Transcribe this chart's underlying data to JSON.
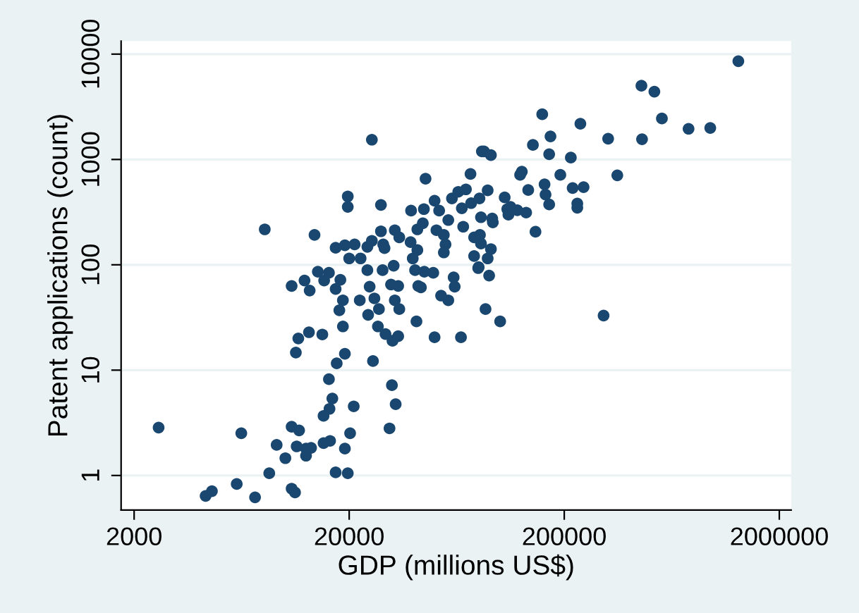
{
  "chart_data": {
    "type": "scatter",
    "xlabel": "GDP (millions US$)",
    "ylabel": "Patent applications (count)",
    "log": "xy",
    "grid": "y",
    "marker": "circle",
    "xlim": [
      1740,
      2270000
    ],
    "ylim": [
      0.47,
      13300
    ],
    "xticks": [
      2000,
      20000,
      200000,
      2000000
    ],
    "yticks": [
      1,
      10,
      100,
      1000,
      10000
    ],
    "series": [
      {
        "color": "#1a476f",
        "x": [
          2600,
          4300,
          4600,
          6000,
          7300,
          6300,
          8500,
          9200,
          10100,
          10800,
          11200,
          10800,
          11700,
          11400,
          12600,
          13300,
          12600,
          15200,
          16200,
          16700,
          15200,
          16300,
          16100,
          17500,
          19100,
          17300,
          19700,
          19100,
          20200,
          21000,
          11300,
          11600,
          13000,
          15000,
          10800,
          12400,
          13100,
          8100,
          13800,
          14300,
          15300,
          17300,
          18000,
          18700,
          18700,
          25500,
          19700,
          19700,
          28100,
          17300,
          19100,
          21200,
          22600,
          24300,
          25500,
          28800,
          24300,
          28600,
          20000,
          16100,
          18200,
          22400,
          24900,
          26200,
          24500,
          27500,
          27200,
          25800,
          29500,
          31600,
          32900,
          30800,
          31800,
          33800,
          32600,
          34200,
          31300,
          33800,
          28100,
          32600,
          34200,
          29200,
          32200,
          45300,
          38800,
          44500,
          41500,
          44000,
          38600,
          41500,
          39500,
          40500,
          44700,
          41900,
          43100,
          41100,
          49200,
          49900,
          52400,
          50900,
          55100,
          56100,
          55100,
          57800,
          60100,
          64300,
          69800,
          73300,
          66800,
          73800,
          67800,
          61200,
          61900,
          57800,
          53500,
          49900,
          66200,
          79600,
          76200,
          76200,
          81100,
          82800,
          84700,
          91200,
          88100,
          80700,
          82000,
          92500,
          93100,
          82000,
          91200,
          88100,
          80000,
          89500,
          86100,
          100700,
          105700,
          108700,
          112500,
          121000,
          110000,
          133000,
          124700,
          127000,
          136000,
          147000,
          143000,
          158000,
          172600,
          170200,
          162000,
          163700,
          170200,
          191800,
          214600,
          218800,
          246000,
          230000,
          230000,
          237700,
          320000,
          353000,
          304800,
          457000,
          525000,
          569000,
          460000,
          757000,
          955000,
          1290000
        ],
        "values": [
          2.85,
          0.64,
          0.71,
          0.83,
          0.62,
          2.52,
          1.05,
          1.95,
          1.46,
          0.75,
          0.69,
          2.9,
          2.68,
          1.89,
          1.8,
          1.83,
          1.54,
          3.68,
          4.29,
          5.38,
          2.03,
          2.13,
          8.2,
          11.6,
          14.3,
          1.07,
          1.05,
          1.8,
          2.52,
          4.53,
          14.7,
          20,
          22.9,
          21.8,
          63,
          71,
          57,
          217,
          192,
          86,
          71,
          59,
          37,
          46,
          26,
          1540,
          446,
          355,
          370,
          145,
          153,
          156,
          115,
          148,
          169,
          156,
          89,
          89,
          115,
          84,
          72,
          46,
          62,
          48,
          33.5,
          38,
          26,
          12.2,
          22,
          7.2,
          4.75,
          2.8,
          19,
          21,
          46,
          38,
          65,
          63,
          208,
          213,
          182,
          144,
          98,
          656,
          327,
          338,
          217,
          248,
          164,
          138,
          115,
          89,
          86,
          63,
          61,
          29,
          84,
          406,
          327,
          213,
          192,
          156,
          131,
          266,
          427,
          493,
          520,
          729,
          344,
          385,
          230,
          76,
          62,
          46,
          51,
          20.5,
          20.5,
          93,
          121,
          182,
          192,
          1194,
          1194,
          1099,
          509,
          427,
          283,
          275,
          253,
          159,
          141,
          115,
          95,
          79,
          38,
          29,
          436,
          338,
          355,
          330,
          299,
          313,
          714,
          766,
          513,
          206,
          1375,
          2685,
          1655,
          1122,
          581,
          464,
          374,
          714,
          1042,
          536,
          546,
          382,
          348,
          2183,
          1575,
          707,
          33,
          5010,
          4400,
          2448,
          1556,
          1955,
          1991,
          8570
        ]
      }
    ]
  }
}
